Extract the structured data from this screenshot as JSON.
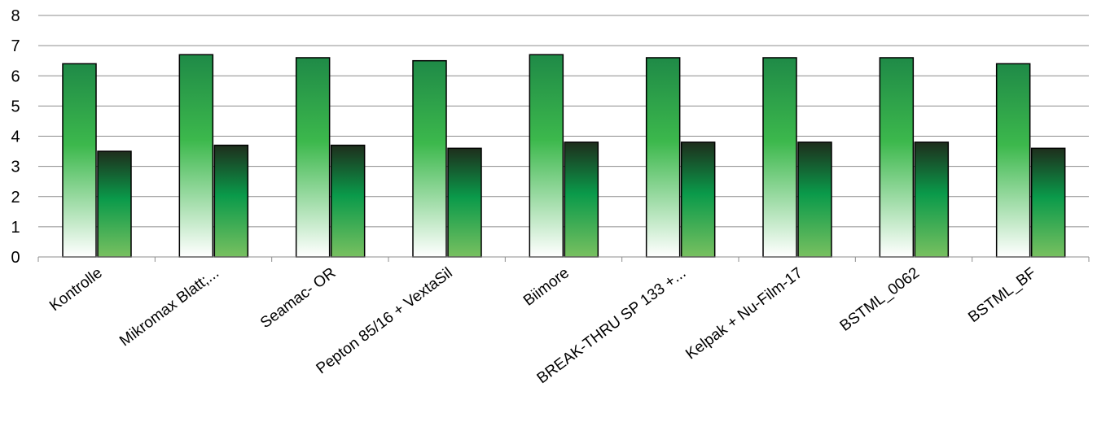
{
  "chart_data": {
    "type": "bar",
    "categories": [
      "Kontrolle",
      "Mikromax Blatt;...",
      "Seamac- OR",
      "Pepton 85/16 + VextaSil",
      "Biimore",
      "BREAK-THRU SP 133 +...",
      "Kelpak + Nu-Film-17",
      "BSTML_0062",
      "BSTML_BF"
    ],
    "series": [
      {
        "values": [
          6.4,
          6.7,
          6.6,
          6.5,
          6.7,
          6.6,
          6.6,
          6.6,
          6.4
        ]
      },
      {
        "values": [
          3.5,
          3.7,
          3.7,
          3.6,
          3.8,
          3.8,
          3.8,
          3.8,
          3.6
        ]
      }
    ],
    "title": "",
    "xlabel": "",
    "ylabel": "",
    "ylim": [
      0,
      8
    ],
    "yticks": [
      "0",
      "1",
      "2",
      "3",
      "4",
      "5",
      "6",
      "7",
      "8"
    ],
    "grid": true,
    "legend": "none",
    "colors": {
      "series1_top": "#1f8a47",
      "series1_mid": "#3cb84c",
      "series1_bottom": "#ffffff",
      "series2_top": "#1e2e1c",
      "series2_mid": "#0a9a4a",
      "series2_bottom": "#78c060",
      "grid": "#8c8c8c",
      "outline": "#000000"
    }
  }
}
